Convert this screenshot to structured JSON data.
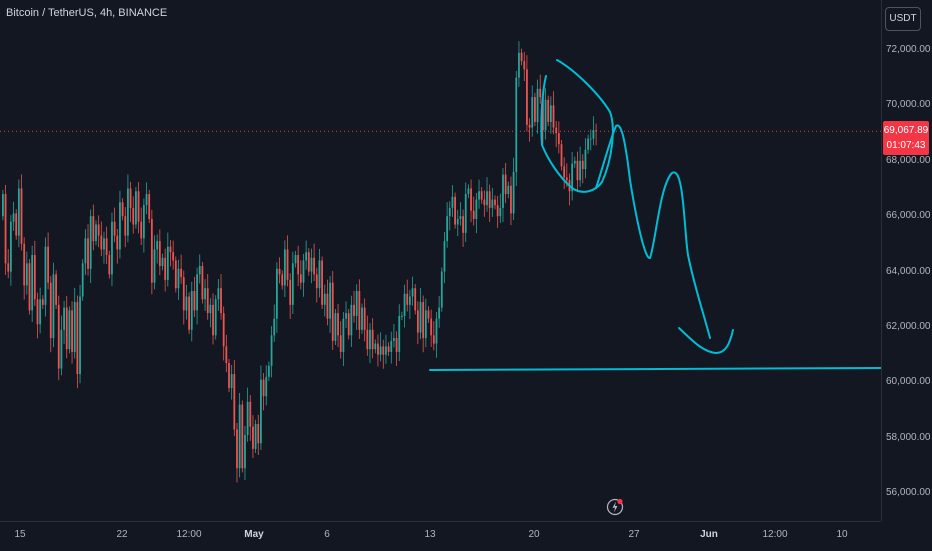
{
  "symbol_title": "Bitcoin / TetherUS, 4h, BINANCE",
  "currency_label": "USDT",
  "current_price": "69,067.89",
  "countdown": "01:07:43",
  "y_axis": {
    "ticks": [
      "72,000.00",
      "70,000.00",
      "68,000.00",
      "66,000.00",
      "64,000.00",
      "62,000.00",
      "60,000.00",
      "58,000.00",
      "56,000.00"
    ]
  },
  "x_axis": {
    "ticks": [
      {
        "label": "15",
        "bold": false
      },
      {
        "label": "22",
        "bold": false
      },
      {
        "label": "12:00",
        "bold": false
      },
      {
        "label": "May",
        "bold": true
      },
      {
        "label": "6",
        "bold": false
      },
      {
        "label": "13",
        "bold": false
      },
      {
        "label": "20",
        "bold": false
      },
      {
        "label": "27",
        "bold": false
      },
      {
        "label": "Jun",
        "bold": true
      },
      {
        "label": "12:00",
        "bold": false
      },
      {
        "label": "10",
        "bold": false
      }
    ]
  },
  "colors": {
    "up": "#26a69a",
    "down": "#ef5350",
    "drawing": "#00bcd4",
    "background": "#131722"
  },
  "icons": {
    "alert": "lightning-bolt-icon"
  },
  "chart_data": {
    "type": "candlestick",
    "ylim": [
      55000,
      73000
    ],
    "current_price_value": 69067.89,
    "support_level": 60500,
    "closes": [
      66800,
      64300,
      64000,
      65800,
      66100,
      65300,
      67000,
      65000,
      63500,
      64300,
      62600,
      64600,
      63000,
      62100,
      63000,
      62800,
      64900,
      63600,
      61600,
      63900,
      62800,
      60500,
      61900,
      62700,
      61200,
      62600,
      61100,
      62900,
      60300,
      63100,
      64300,
      65200,
      64100,
      66000,
      65100,
      65700,
      65300,
      64800,
      65200,
      64600,
      63900,
      65800,
      65300,
      64800,
      66500,
      66000,
      65300,
      67000,
      66300,
      65700,
      66900,
      65800,
      65200,
      66400,
      66800,
      65900,
      63600,
      64800,
      65100,
      64200,
      64500,
      63700,
      64900,
      64700,
      64400,
      63400,
      64100,
      63800,
      62600,
      63100,
      61900,
      63300,
      62600,
      63900,
      64200,
      63000,
      63400,
      62500,
      62800,
      61700,
      63000,
      63400,
      62500,
      61300,
      60700,
      59800,
      60300,
      58300,
      56900,
      59200,
      56900,
      58100,
      59300,
      58400,
      57600,
      58500,
      57800,
      60100,
      59500,
      60200,
      60600,
      61700,
      62300,
      64100,
      63900,
      63500,
      64800,
      63700,
      62800,
      64300,
      64600,
      63900,
      63600,
      64400,
      64700,
      64000,
      64500,
      63900,
      63400,
      64400,
      62800,
      63200,
      62300,
      63600,
      61500,
      62500,
      61700,
      61100,
      62300,
      62500,
      61700,
      62800,
      62400,
      63300,
      61900,
      62700,
      61900,
      61200,
      61900,
      61200,
      61400,
      61000,
      61300,
      61000,
      61300,
      61100,
      61500,
      61600,
      61100,
      62400,
      62400,
      63200,
      62800,
      63100,
      63400,
      62600,
      61800,
      62900,
      61600,
      62600,
      62300,
      61700,
      61400,
      62300,
      62700,
      64000,
      65100,
      66000,
      66300,
      66700,
      65700,
      65900,
      66000,
      65400,
      66800,
      67000,
      66200,
      65900,
      66600,
      66900,
      66600,
      66400,
      66900,
      66300,
      66600,
      66400,
      66000,
      66300,
      67500,
      66800,
      67100,
      66100,
      67600,
      71000,
      71900,
      71600,
      71300,
      69300,
      69200,
      70300,
      69400,
      70600,
      70300,
      69100,
      70200,
      69400,
      70000,
      69200,
      69000,
      68600,
      67800,
      67400,
      67300,
      66900,
      67900,
      68000,
      67300,
      68000,
      67700,
      68400,
      68800,
      68800,
      69100,
      69067
    ]
  }
}
